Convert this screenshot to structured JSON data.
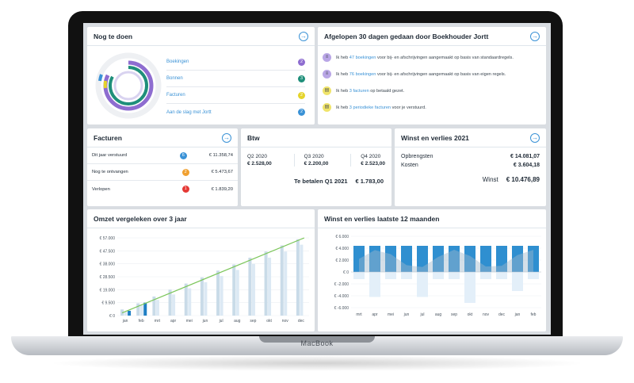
{
  "device": {
    "brand": "MacBook"
  },
  "todo": {
    "title": "Nog te doen",
    "items": [
      {
        "label": "Boekingen",
        "count": "2",
        "color": "#8e6dd0"
      },
      {
        "label": "Bonnen",
        "count": "3",
        "color": "#1f8f7a"
      },
      {
        "label": "Facturen",
        "count": "2",
        "color": "#e5d42b"
      },
      {
        "label": "Aan de slag met Jortt",
        "count": "2",
        "color": "#3a92d6"
      }
    ]
  },
  "activity": {
    "title": "Afgelopen 30 dagen gedaan door Boekhouder Jortt",
    "items": [
      {
        "pre": "Ik heb ",
        "link": "47 boekingen",
        "post": " voor bij- en afschrijvingen aangemaakt op basis van standaardregels.",
        "color": "#b9a6e6"
      },
      {
        "pre": "Ik heb ",
        "link": "76 boekingen",
        "post": " voor bij- en afschrijvingen aangemaakt op basis van eigen regels.",
        "color": "#b9a6e6"
      },
      {
        "pre": "Ik heb ",
        "link": "3 facturen",
        "post": " op betaald gezet.",
        "color": "#f0e46a"
      },
      {
        "pre": "Ik heb ",
        "link": "3 periodieke facturen",
        "post": " voor je verstuurd.",
        "color": "#f0e46a"
      }
    ]
  },
  "facturen": {
    "title": "Facturen",
    "rows": [
      {
        "label": "Dit jaar verstuurd",
        "count": "6",
        "color": "#3a92d6",
        "amount": "€ 11.358,74"
      },
      {
        "label": "Nog te ontvangen",
        "count": "2",
        "color": "#f0a030",
        "amount": "€ 5.473,67"
      },
      {
        "label": "Verlopen",
        "count": "1",
        "color": "#e53935",
        "amount": "€ 1.839,20"
      }
    ]
  },
  "btw": {
    "title": "Btw",
    "quarters": [
      {
        "label": "Q2 2020",
        "amount": "€ 2.528,00"
      },
      {
        "label": "Q3 2020",
        "amount": "€ 2.200,00"
      },
      {
        "label": "Q4 2020",
        "amount": "€ 2.523,00"
      }
    ],
    "due_label": "Te betalen Q1 2021",
    "due_amount": "€ 1.783,00"
  },
  "wv": {
    "title": "Winst en verlies 2021",
    "opbrengsten_label": "Opbrengsten",
    "opbrengsten": "€ 14.081,07",
    "kosten_label": "Kosten",
    "kosten": "€ 3.604,18",
    "winst_label": "Winst",
    "winst": "€ 10.476,89"
  },
  "omzet": {
    "title": "Omzet vergeleken over 3 jaar"
  },
  "wv12": {
    "title": "Winst en verlies laatste 12 maanden"
  },
  "chart_data": [
    {
      "type": "bar",
      "title": "Omzet vergeleken over 3 jaar",
      "categories": [
        "jan",
        "feb",
        "mrt",
        "apr",
        "mei",
        "jun",
        "jul",
        "aug",
        "sep",
        "okt",
        "nov",
        "dec"
      ],
      "yticks": [
        "€ 0",
        "€ 9.500",
        "€ 19.000",
        "€ 28.500",
        "€ 38.000",
        "€ 47.500",
        "€ 57.000"
      ],
      "ylim": [
        0,
        57000
      ],
      "series": [
        {
          "values": [
            4500,
            9000,
            14000,
            19000,
            23500,
            28000,
            33000,
            37500,
            42500,
            47000,
            51500,
            56000
          ],
          "color": "#c9dbe8"
        },
        {
          "values": [
            3000,
            7500,
            11500,
            15500,
            20000,
            24500,
            29000,
            33500,
            38000,
            42500,
            47000,
            52000
          ],
          "color": "#dce9f4"
        },
        {
          "values": [
            3500,
            9500,
            null,
            null,
            null,
            null,
            null,
            null,
            null,
            null,
            null,
            null
          ],
          "color": "#1f7fc4"
        }
      ],
      "trend": [
        2000,
        57000
      ],
      "trend_color": "#7cc65a"
    },
    {
      "type": "bar",
      "title": "Winst en verlies laatste 12 maanden",
      "categories": [
        "mrt",
        "apr",
        "mei",
        "jun",
        "jul",
        "aug",
        "sep",
        "okt",
        "nov",
        "dec",
        "jan",
        "feb"
      ],
      "yticks": [
        "€ -6.000",
        "€ -4.000",
        "€ -2.000",
        "€ 0",
        "€ 2.000",
        "€ 4.000",
        "€ 6.000"
      ],
      "ylim": [
        -6000,
        6000
      ],
      "series": [
        {
          "values": [
            4400,
            4400,
            4400,
            4400,
            4400,
            4400,
            4400,
            4400,
            4400,
            4400,
            4400,
            4400
          ],
          "color": "#2f8fd0"
        },
        {
          "values": [
            -1200,
            -4200,
            -1200,
            -1200,
            -4200,
            -1200,
            -1200,
            -5200,
            -1200,
            -1200,
            -3200,
            -1200
          ],
          "color": "#e3eff9"
        }
      ],
      "area_color": "#9fb7cc"
    }
  ]
}
